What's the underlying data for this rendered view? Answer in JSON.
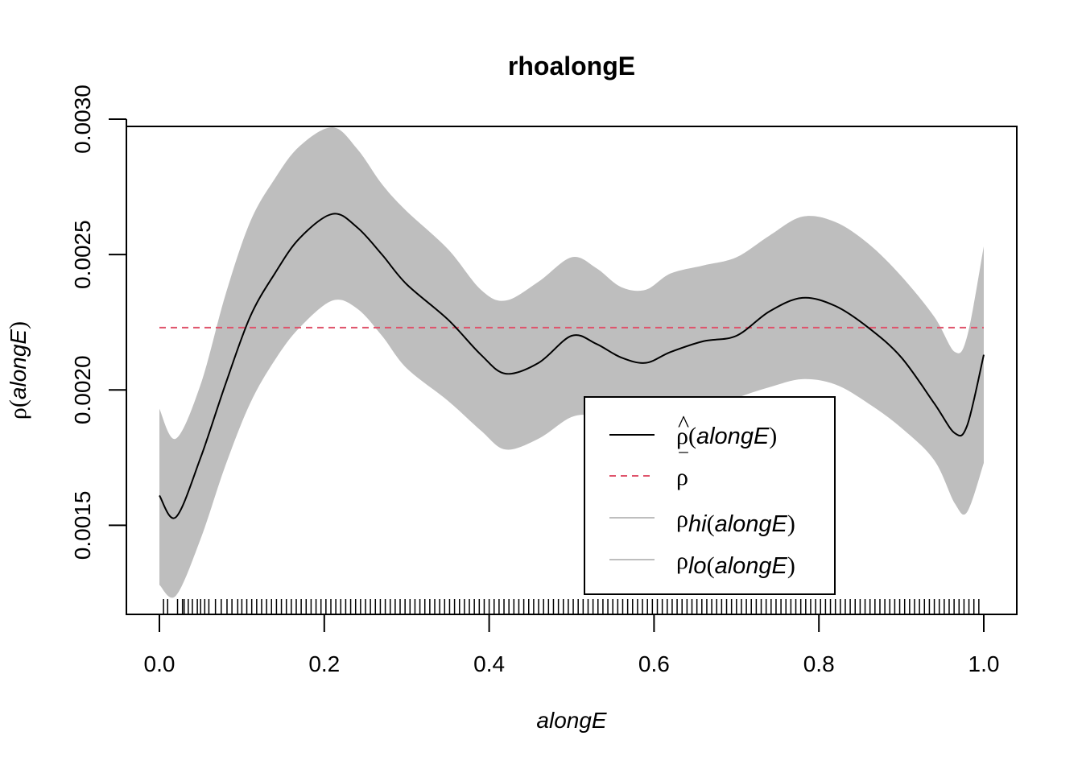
{
  "chart_data": {
    "type": "line",
    "title": "rhoalongE",
    "xlabel": "alongE",
    "ylabel_symbol": "ρ",
    "ylabel_var": "alongE",
    "xlim": [
      0,
      1
    ],
    "ylim": [
      0.00118,
      0.003
    ],
    "xticks": [
      0.0,
      0.2,
      0.4,
      0.6,
      0.8,
      1.0
    ],
    "xtick_labels": [
      "0.0",
      "0.2",
      "0.4",
      "0.6",
      "0.8",
      "1.0"
    ],
    "yticks": [
      0.0015,
      0.002,
      0.0025,
      0.003
    ],
    "ytick_labels": [
      "0.0015",
      "0.0020",
      "0.0025",
      "0.0030"
    ],
    "series": [
      {
        "name": "ρ̂(alongE)",
        "style": "solid",
        "color": "#000000",
        "x": [
          0.0,
          0.02,
          0.05,
          0.08,
          0.11,
          0.14,
          0.17,
          0.21,
          0.24,
          0.27,
          0.3,
          0.35,
          0.39,
          0.42,
          0.46,
          0.5,
          0.53,
          0.56,
          0.59,
          0.62,
          0.66,
          0.7,
          0.74,
          0.78,
          0.82,
          0.86,
          0.9,
          0.94,
          0.965,
          0.98,
          1.0
        ],
        "values": [
          0.00161,
          0.00153,
          0.00175,
          0.00202,
          0.00227,
          0.00243,
          0.00256,
          0.00265,
          0.0026,
          0.0025,
          0.00239,
          0.00226,
          0.00213,
          0.00206,
          0.0021,
          0.0022,
          0.00217,
          0.00212,
          0.0021,
          0.00214,
          0.00218,
          0.0022,
          0.00229,
          0.00234,
          0.00231,
          0.00223,
          0.00212,
          0.00195,
          0.00184,
          0.00187,
          0.00213
        ]
      },
      {
        "name": "ρ̄",
        "style": "dashed",
        "color": "#df536b",
        "x": [
          0.0,
          1.0
        ],
        "values": [
          0.00223,
          0.00223
        ]
      },
      {
        "name": "ρhi(alongE)",
        "style": "band-upper",
        "color": "#bebebe",
        "x": [
          0.0,
          0.02,
          0.05,
          0.08,
          0.11,
          0.14,
          0.17,
          0.21,
          0.24,
          0.27,
          0.3,
          0.35,
          0.39,
          0.42,
          0.46,
          0.5,
          0.53,
          0.56,
          0.59,
          0.62,
          0.66,
          0.7,
          0.74,
          0.78,
          0.82,
          0.86,
          0.9,
          0.94,
          0.965,
          0.98,
          1.0
        ],
        "values": [
          0.00193,
          0.00182,
          0.00202,
          0.00235,
          0.00262,
          0.00278,
          0.0029,
          0.00297,
          0.00289,
          0.00276,
          0.00266,
          0.00252,
          0.00237,
          0.00233,
          0.0024,
          0.00249,
          0.00245,
          0.00238,
          0.00237,
          0.00243,
          0.00246,
          0.00249,
          0.00257,
          0.00264,
          0.00262,
          0.00254,
          0.00242,
          0.00227,
          0.00214,
          0.0022,
          0.00253
        ]
      },
      {
        "name": "ρlo(alongE)",
        "style": "band-lower",
        "color": "#bebebe",
        "x": [
          0.0,
          0.02,
          0.05,
          0.08,
          0.11,
          0.14,
          0.17,
          0.21,
          0.24,
          0.27,
          0.3,
          0.35,
          0.39,
          0.42,
          0.46,
          0.5,
          0.53,
          0.56,
          0.59,
          0.62,
          0.66,
          0.7,
          0.74,
          0.78,
          0.82,
          0.86,
          0.9,
          0.94,
          0.965,
          0.98,
          1.0
        ],
        "values": [
          0.00128,
          0.00124,
          0.00145,
          0.00172,
          0.00195,
          0.00211,
          0.00223,
          0.00233,
          0.0023,
          0.0022,
          0.00208,
          0.00196,
          0.00185,
          0.00178,
          0.00182,
          0.0019,
          0.0019,
          0.00185,
          0.00183,
          0.00186,
          0.00192,
          0.00197,
          0.00201,
          0.00204,
          0.00202,
          0.00195,
          0.00186,
          0.00174,
          0.00158,
          0.00155,
          0.00173
        ]
      }
    ],
    "legend": {
      "position": "bottom-right",
      "entries": [
        {
          "base": "ρ",
          "hat": "^",
          "sub": "",
          "arg": "alongE",
          "line": "solid",
          "color": "#000000"
        },
        {
          "base": "ρ",
          "bar": "‾",
          "sub": "",
          "arg": "",
          "line": "dashed",
          "color": "#df536b"
        },
        {
          "base": "ρ",
          "sub": "hi",
          "arg": "alongE",
          "line": "solid",
          "color": "#bebebe"
        },
        {
          "base": "ρ",
          "sub": "lo",
          "arg": "alongE",
          "line": "solid",
          "color": "#bebebe"
        }
      ]
    },
    "rug": [
      0.005,
      0.01,
      0.022,
      0.028,
      0.03,
      0.035,
      0.04,
      0.046,
      0.05,
      0.055,
      0.06,
      0.068,
      0.075,
      0.082,
      0.088,
      0.095,
      0.1,
      0.106,
      0.112,
      0.118,
      0.124,
      0.13,
      0.136,
      0.142,
      0.148,
      0.154,
      0.16,
      0.166,
      0.172,
      0.178,
      0.184,
      0.19,
      0.196,
      0.202,
      0.208,
      0.214,
      0.22,
      0.226,
      0.232,
      0.238,
      0.244,
      0.25,
      0.256,
      0.262,
      0.268,
      0.274,
      0.28,
      0.286,
      0.292,
      0.298,
      0.304,
      0.31,
      0.316,
      0.322,
      0.328,
      0.334,
      0.34,
      0.346,
      0.352,
      0.358,
      0.364,
      0.37,
      0.376,
      0.382,
      0.388,
      0.394,
      0.4,
      0.406,
      0.412,
      0.418,
      0.424,
      0.43,
      0.436,
      0.442,
      0.448,
      0.454,
      0.46,
      0.466,
      0.472,
      0.478,
      0.484,
      0.49,
      0.496,
      0.502,
      0.508,
      0.514,
      0.52,
      0.526,
      0.532,
      0.538,
      0.544,
      0.55,
      0.556,
      0.562,
      0.568,
      0.574,
      0.58,
      0.586,
      0.592,
      0.598,
      0.604,
      0.61,
      0.616,
      0.622,
      0.628,
      0.634,
      0.64,
      0.646,
      0.652,
      0.658,
      0.664,
      0.67,
      0.676,
      0.682,
      0.688,
      0.694,
      0.7,
      0.706,
      0.712,
      0.718,
      0.724,
      0.73,
      0.736,
      0.742,
      0.748,
      0.754,
      0.76,
      0.766,
      0.772,
      0.778,
      0.784,
      0.79,
      0.796,
      0.802,
      0.808,
      0.814,
      0.82,
      0.826,
      0.832,
      0.838,
      0.844,
      0.85,
      0.856,
      0.862,
      0.868,
      0.874,
      0.88,
      0.886,
      0.892,
      0.898,
      0.904,
      0.91,
      0.916,
      0.922,
      0.928,
      0.934,
      0.94,
      0.946,
      0.952,
      0.958,
      0.964,
      0.97,
      0.976,
      0.982,
      0.988,
      0.994
    ]
  }
}
